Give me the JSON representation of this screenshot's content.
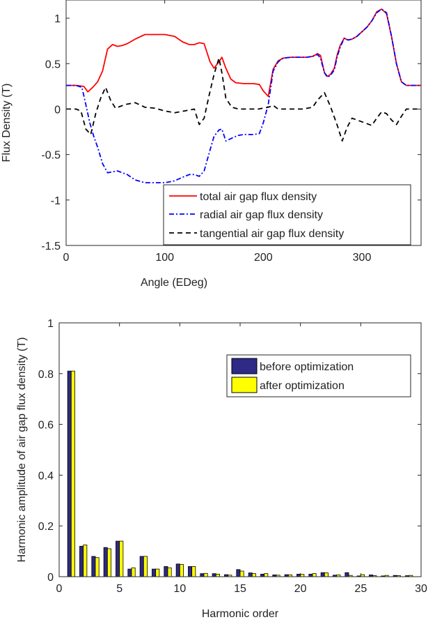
{
  "chart_data": [
    {
      "type": "line",
      "title": "",
      "xlabel": "Angle (EDeg)",
      "ylabel": "Flux Density (T)",
      "xlim": [
        0,
        360
      ],
      "ylim": [
        -1.5,
        1.2
      ],
      "xticks": [
        0,
        100,
        200,
        300
      ],
      "yticks": [
        -1.5,
        -1,
        -0.5,
        0,
        0.5,
        1
      ],
      "grid": false,
      "legend_position": "bottom-right",
      "series": [
        {
          "name": "total air gap flux density",
          "color": "#ff0000",
          "style": "solid",
          "x": [
            0,
            10,
            18,
            22,
            27,
            32,
            37,
            42,
            47,
            52,
            57,
            62,
            70,
            80,
            90,
            100,
            110,
            118,
            125,
            130,
            135,
            140,
            146,
            150,
            155,
            158,
            162,
            167,
            172,
            180,
            190,
            196,
            200,
            205,
            210,
            215,
            220,
            228,
            236,
            244,
            250,
            255,
            258,
            262,
            265,
            268,
            272,
            275,
            278,
            282,
            286,
            290,
            295,
            300,
            305,
            310,
            315,
            320,
            325,
            330,
            335,
            340,
            345,
            350,
            355,
            360
          ],
          "y": [
            0.26,
            0.26,
            0.25,
            0.19,
            0.24,
            0.3,
            0.42,
            0.66,
            0.71,
            0.69,
            0.7,
            0.72,
            0.77,
            0.82,
            0.82,
            0.82,
            0.8,
            0.74,
            0.71,
            0.71,
            0.73,
            0.72,
            0.52,
            0.45,
            0.52,
            0.57,
            0.45,
            0.33,
            0.29,
            0.28,
            0.28,
            0.27,
            0.2,
            0.14,
            0.44,
            0.53,
            0.56,
            0.57,
            0.57,
            0.57,
            0.58,
            0.61,
            0.59,
            0.4,
            0.36,
            0.38,
            0.45,
            0.6,
            0.7,
            0.78,
            0.76,
            0.77,
            0.8,
            0.85,
            0.9,
            0.97,
            1.07,
            1.1,
            1.05,
            0.8,
            0.5,
            0.3,
            0.26,
            0.26,
            0.26,
            0.26
          ]
        },
        {
          "name": "radial air gap flux density",
          "color": "#0000ff",
          "style": "dashdot",
          "x": [
            0,
            10,
            16,
            20,
            24,
            28,
            32,
            37,
            42,
            47,
            52,
            57,
            62,
            70,
            80,
            90,
            100,
            110,
            118,
            125,
            130,
            135,
            140,
            146,
            150,
            155,
            158,
            162,
            168,
            174,
            180,
            190,
            196,
            200,
            205,
            210,
            215,
            220,
            228,
            236,
            244,
            250,
            255,
            258,
            262,
            265,
            268,
            272,
            275,
            278,
            282,
            286,
            290,
            295,
            300,
            305,
            310,
            315,
            320,
            325,
            330,
            335,
            340,
            345,
            350,
            355,
            360
          ],
          "y": [
            0.26,
            0.26,
            0.24,
            0.05,
            -0.15,
            -0.3,
            -0.42,
            -0.6,
            -0.7,
            -0.69,
            -0.68,
            -0.7,
            -0.72,
            -0.78,
            -0.81,
            -0.81,
            -0.81,
            -0.79,
            -0.75,
            -0.72,
            -0.72,
            -0.74,
            -0.68,
            -0.45,
            -0.3,
            -0.23,
            -0.22,
            -0.35,
            -0.32,
            -0.29,
            -0.28,
            -0.28,
            -0.27,
            -0.15,
            0.05,
            0.42,
            0.52,
            0.56,
            0.57,
            0.57,
            0.57,
            0.58,
            0.6,
            0.56,
            0.4,
            0.35,
            0.37,
            0.43,
            0.58,
            0.68,
            0.78,
            0.76,
            0.77,
            0.8,
            0.85,
            0.9,
            0.97,
            1.06,
            1.1,
            1.06,
            0.8,
            0.5,
            0.3,
            0.26,
            0.26,
            0.26,
            0.26
          ]
        },
        {
          "name": "tangential air gap flux density",
          "color": "#000000",
          "style": "dashed",
          "x": [
            0,
            10,
            15,
            20,
            25,
            30,
            35,
            40,
            45,
            50,
            55,
            60,
            70,
            80,
            90,
            100,
            110,
            120,
            130,
            135,
            140,
            145,
            150,
            155,
            158,
            162,
            168,
            175,
            185,
            195,
            205,
            210,
            215,
            225,
            240,
            250,
            255,
            262,
            268,
            275,
            280,
            285,
            290,
            300,
            310,
            315,
            320,
            325,
            330,
            335,
            340,
            345,
            350,
            355,
            360
          ],
          "y": [
            0,
            0,
            -0.02,
            -0.22,
            -0.28,
            -0.05,
            0.12,
            0.24,
            0.1,
            0.01,
            0.03,
            0.05,
            0.07,
            0.02,
            0.01,
            -0.02,
            -0.04,
            -0.02,
            0.0,
            -0.17,
            -0.1,
            0.15,
            0.38,
            0.56,
            0.4,
            0.12,
            0.02,
            0.0,
            0.0,
            0.0,
            0.02,
            0.04,
            0.0,
            0.0,
            0.0,
            0.02,
            0.1,
            0.18,
            0.03,
            -0.18,
            -0.35,
            -0.2,
            -0.1,
            -0.14,
            -0.18,
            -0.1,
            -0.03,
            -0.05,
            -0.12,
            -0.17,
            -0.08,
            0.0,
            0.0,
            0.0,
            0.0
          ]
        }
      ]
    },
    {
      "type": "bar",
      "title": "",
      "xlabel": "Harmonic order",
      "ylabel": "Harmonic amplitude of air gap flux density (T)",
      "xlim": [
        0,
        30
      ],
      "ylim": [
        0,
        1
      ],
      "xticks": [
        0,
        5,
        10,
        15,
        20,
        25,
        30
      ],
      "yticks": [
        0,
        0.2,
        0.4,
        0.6,
        0.8,
        1
      ],
      "grid": false,
      "legend_position": "top-right",
      "categories": [
        1,
        2,
        3,
        4,
        5,
        6,
        7,
        8,
        9,
        10,
        11,
        12,
        13,
        14,
        15,
        16,
        17,
        18,
        19,
        20,
        21,
        22,
        23,
        24,
        25,
        26,
        27,
        28,
        29
      ],
      "series": [
        {
          "name": "before optimization",
          "color": "#2e2a85",
          "values": [
            0.81,
            0.12,
            0.08,
            0.115,
            0.14,
            0.03,
            0.08,
            0.03,
            0.04,
            0.05,
            0.04,
            0.012,
            0.012,
            0.008,
            0.028,
            0.015,
            0.01,
            0.007,
            0.008,
            0.01,
            0.01,
            0.016,
            0.006,
            0.016,
            0.003,
            0.007,
            0.003,
            0.005,
            0.004
          ]
        },
        {
          "name": "after optimization",
          "color": "#ffff00",
          "values": [
            0.81,
            0.125,
            0.075,
            0.11,
            0.14,
            0.035,
            0.08,
            0.03,
            0.035,
            0.048,
            0.04,
            0.013,
            0.01,
            0.006,
            0.022,
            0.012,
            0.012,
            0.006,
            0.007,
            0.009,
            0.012,
            0.015,
            0.007,
            0.005,
            0.008,
            0.004,
            0.005,
            0.004,
            0.005
          ]
        }
      ]
    }
  ]
}
